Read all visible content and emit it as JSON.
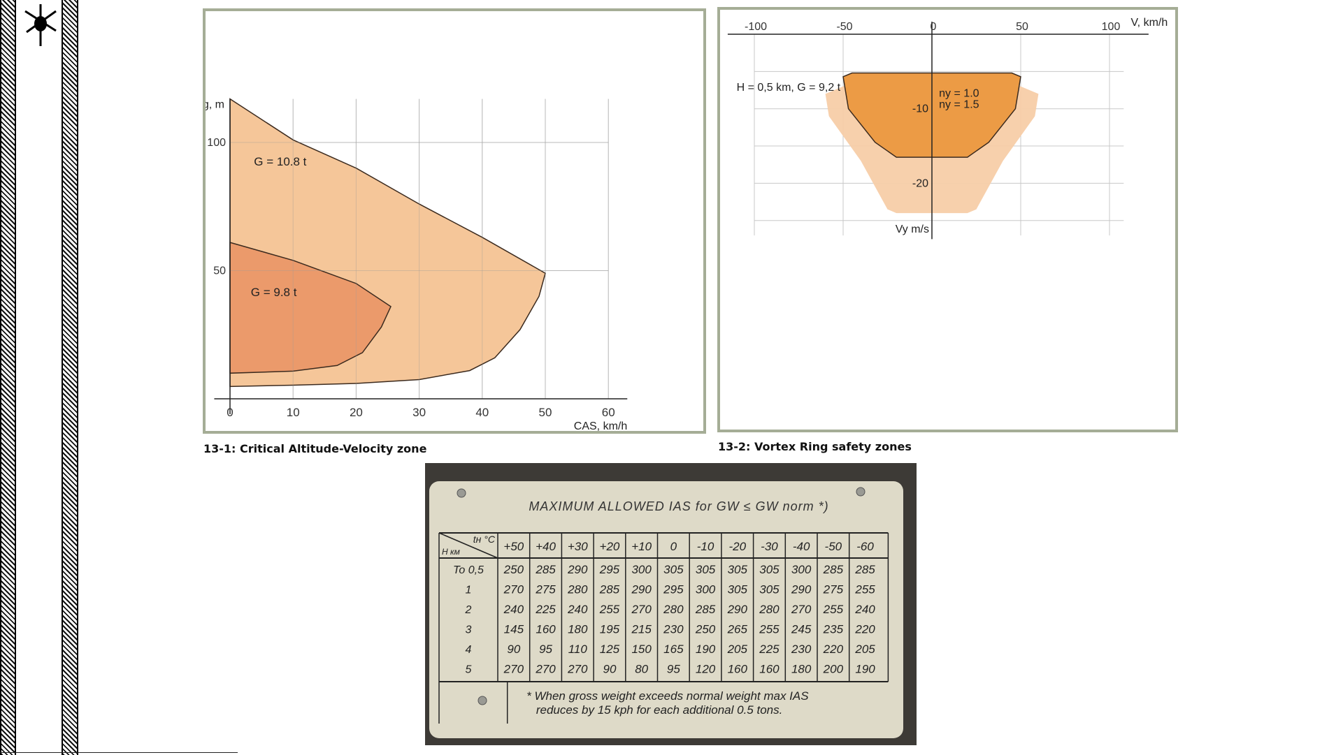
{
  "chart_data": [
    {
      "type": "area",
      "caption": "13-1: Critical Altitude-Velocity zone",
      "xlabel": "CAS, km/h",
      "ylabel": "Hg, m",
      "xticks": [
        0,
        10,
        20,
        30,
        40,
        50,
        60
      ],
      "yticks": [
        50,
        100
      ],
      "xlim": [
        0,
        63
      ],
      "ylim": [
        -5,
        117
      ],
      "grid": true,
      "colors": {
        "G108": "#f4c394",
        "G98": "#eb9a6b",
        "grid": "#c8c8c8"
      },
      "series": [
        {
          "name": "G = 10.8 t",
          "points": [
            [
              0,
              117
            ],
            [
              10,
              101
            ],
            [
              20,
              90
            ],
            [
              30,
              76
            ],
            [
              40,
              63
            ],
            [
              50,
              49
            ],
            [
              49,
              40
            ],
            [
              46,
              27
            ],
            [
              42,
              16
            ],
            [
              38,
              11
            ],
            [
              30,
              7.5
            ],
            [
              20,
              6
            ],
            [
              10,
              5.3
            ],
            [
              0,
              4.8
            ]
          ]
        },
        {
          "name": "G = 9.8 t",
          "points": [
            [
              0,
              61
            ],
            [
              10,
              54
            ],
            [
              20,
              45
            ],
            [
              25.5,
              36
            ],
            [
              24,
              28
            ],
            [
              21,
              18
            ],
            [
              17,
              13
            ],
            [
              10,
              10.8
            ],
            [
              0,
              10
            ]
          ]
        }
      ]
    },
    {
      "type": "area",
      "caption": "13-2: Vortex Ring safety zones",
      "xlabel": "V, km/h",
      "ylabel": "Vy m/s",
      "xticks": [
        -100,
        -50,
        0,
        50,
        100
      ],
      "yticks": [
        -10,
        -20
      ],
      "xlim": [
        -100,
        115
      ],
      "ylim": [
        -27,
        3
      ],
      "grid": true,
      "annotation": "H = 0,5 km, G = 9,2 t",
      "colors": {
        "ny10": "#ec9b45",
        "ny15": "#f7cea8",
        "grid": "#c8c8c8"
      },
      "series": [
        {
          "name": "ny = 1.0",
          "points": [
            [
              -50,
              -5.7
            ],
            [
              -45,
              -5.2
            ],
            [
              45,
              -5.2
            ],
            [
              50,
              -5.7
            ],
            [
              47,
              -10
            ],
            [
              32,
              -14.5
            ],
            [
              20,
              -16.5
            ],
            [
              -20,
              -16.5
            ],
            [
              -32,
              -14.5
            ],
            [
              -47,
              -10
            ],
            [
              -50,
              -5.7
            ]
          ]
        },
        {
          "name": "ny = 1.5",
          "points": [
            [
              -60,
              -8
            ],
            [
              -40,
              -6
            ],
            [
              40,
              -6
            ],
            [
              60,
              -8
            ],
            [
              58,
              -11
            ],
            [
              40,
              -17
            ],
            [
              25,
              -23.5
            ],
            [
              20,
              -24
            ],
            [
              -20,
              -24
            ],
            [
              -25,
              -23.5
            ],
            [
              -40,
              -17
            ],
            [
              -58,
              -11
            ],
            [
              -60,
              -8
            ]
          ]
        }
      ]
    },
    {
      "type": "table",
      "title": "MAXIMUM ALLOWED IAS for  GW ≤ GW norm *)",
      "corner_top": "tн °C",
      "corner_bottom": "H км",
      "columns": [
        "+50",
        "+40",
        "+30",
        "+20",
        "+10",
        "0",
        "-10",
        "-20",
        "-30",
        "-40",
        "-50",
        "-60"
      ],
      "rows": [
        {
          "label": "To 0,5",
          "values": [
            250,
            285,
            290,
            295,
            300,
            305,
            305,
            305,
            305,
            300,
            285,
            285
          ]
        },
        {
          "label": "1",
          "values": [
            270,
            275,
            280,
            285,
            290,
            295,
            300,
            305,
            305,
            290,
            275,
            255
          ]
        },
        {
          "label": "2",
          "values": [
            240,
            225,
            240,
            255,
            270,
            280,
            285,
            290,
            280,
            270,
            255,
            240
          ]
        },
        {
          "label": "3",
          "values": [
            145,
            160,
            180,
            195,
            215,
            230,
            250,
            265,
            255,
            245,
            235,
            220
          ]
        },
        {
          "label": "4",
          "values": [
            90,
            95,
            110,
            125,
            150,
            165,
            190,
            205,
            225,
            230,
            220,
            205
          ]
        },
        {
          "label": "5",
          "values": [
            270,
            270,
            270,
            90,
            80,
            95,
            120,
            160,
            160,
            180,
            200,
            190
          ]
        }
      ],
      "footnote": [
        "* When gross weight exceeds normal weight max IAS",
        "reduces by 15 kph for each additional 0.5 tons."
      ]
    }
  ]
}
